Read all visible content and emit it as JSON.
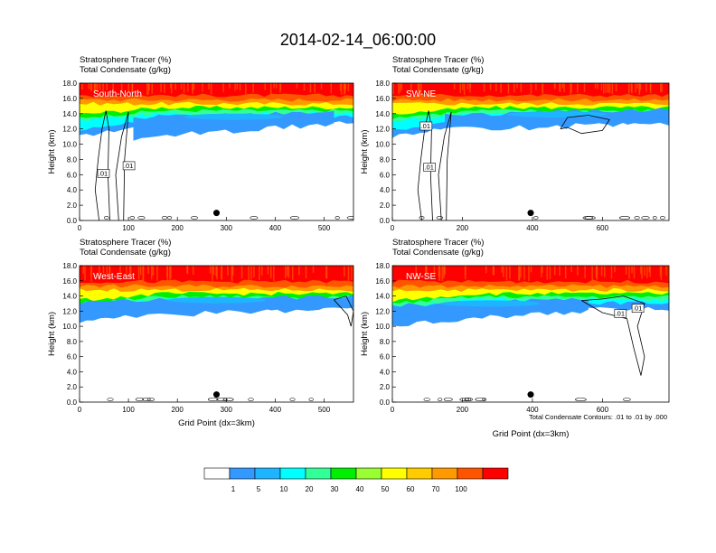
{
  "figure": {
    "title": "2014-02-14_06:00:00",
    "contour_note": "Total Condensate Contours: .01 to .01 by .000",
    "colors": {
      "background": "#ffffff",
      "axes": "#000000",
      "contour": "#000000",
      "marker": "#000000"
    }
  },
  "colorbar": {
    "labels": [
      "1",
      "5",
      "10",
      "20",
      "30",
      "40",
      "50",
      "60",
      "70",
      "100"
    ],
    "colors": [
      "#ffffff",
      "#3399ff",
      "#1fb4ff",
      "#00ffff",
      "#33ff99",
      "#00ee00",
      "#99ff33",
      "#ffff00",
      "#ffcc00",
      "#ff9900",
      "#ff5500",
      "#ff0000"
    ]
  },
  "chart_data": [
    {
      "type": "heatmap",
      "panel": "South-North",
      "label": "South-North",
      "subtitle1": "Stratosphere Tracer   (%)",
      "subtitle2": "Total Condensate   (g/kg)",
      "ylabel": "Height (km)",
      "xlabel": "",
      "xlim": [
        0,
        560
      ],
      "ylim": [
        0,
        18
      ],
      "xticks": [
        "0",
        "100",
        "200",
        "300",
        "400",
        "500"
      ],
      "yticks": [
        "0.0",
        "2.0",
        "4.0",
        "6.0",
        "8.0",
        "10.0",
        "12.0",
        "14.0",
        "16.0",
        "18.0"
      ],
      "marker": {
        "x": 280,
        "y": 1.0
      },
      "contour_labels": [
        ".01",
        ".01"
      ],
      "tracer_base_km": 15.0,
      "cloud_layer": {
        "x": [
          110,
          520
        ],
        "top_km": [
          13.5,
          14.2
        ],
        "bottom_km": [
          10.8,
          12.6
        ]
      }
    },
    {
      "type": "heatmap",
      "panel": "SW-NE",
      "label": "SW-NE",
      "subtitle1": "Stratosphere Tracer   (%)",
      "subtitle2": "Total Condensate   (g/kg)",
      "ylabel": "Height (km)",
      "xlabel": "",
      "xlim": [
        0,
        790
      ],
      "ylim": [
        0,
        18
      ],
      "xticks": [
        "0",
        "200",
        "400",
        "600"
      ],
      "yticks": [
        "0.0",
        "2.0",
        "4.0",
        "6.0",
        "8.0",
        "10.0",
        "12.0",
        "14.0",
        "16.0",
        "18.0"
      ],
      "marker": {
        "x": 395,
        "y": 1.0
      },
      "contour_labels": [
        ".01",
        ".01"
      ],
      "tracer_base_km": 15.0,
      "cloud_layer": {
        "x": [
          150,
          790
        ],
        "top_km": [
          13.8,
          14.6
        ],
        "bottom_km": [
          11.8,
          12.8
        ]
      }
    },
    {
      "type": "heatmap",
      "panel": "West-East",
      "label": "West-East",
      "subtitle1": "Stratosphere Tracer   (%)",
      "subtitle2": "Total Condensate   (g/kg)",
      "ylabel": "Height (km)",
      "xlabel": "Grid Point (dx=3km)",
      "xlim": [
        0,
        560
      ],
      "ylim": [
        0,
        18
      ],
      "xticks": [
        "0",
        "100",
        "200",
        "300",
        "400",
        "500"
      ],
      "yticks": [
        "0.0",
        "2.0",
        "4.0",
        "6.0",
        "8.0",
        "10.0",
        "12.0",
        "14.0",
        "16.0",
        "18.0"
      ],
      "marker": {
        "x": 280,
        "y": 1.0
      },
      "contour_labels": [],
      "tracer_base_km": 14.5,
      "cloud_layer": {
        "x": [
          0,
          560
        ],
        "top_km": [
          13.2,
          14.0
        ],
        "bottom_km": [
          11.0,
          12.5
        ]
      }
    },
    {
      "type": "heatmap",
      "panel": "NW-SE",
      "label": "NW-SE",
      "subtitle1": "Stratosphere Tracer   (%)",
      "subtitle2": "Total Condensate   (g/kg)",
      "ylabel": "Height (km)",
      "xlabel": "Grid Point (dx=3km)",
      "xlim": [
        0,
        790
      ],
      "ylim": [
        0,
        18
      ],
      "xticks": [
        "0",
        "200",
        "400",
        "600"
      ],
      "yticks": [
        "0.0",
        "2.0",
        "4.0",
        "6.0",
        "8.0",
        "10.0",
        "12.0",
        "14.0",
        "16.0",
        "18.0"
      ],
      "marker": {
        "x": 395,
        "y": 1.0
      },
      "contour_labels": [
        ".01",
        ".01"
      ],
      "tracer_base_km": 14.5,
      "cloud_layer": {
        "x": [
          0,
          560
        ],
        "top_km": [
          12.8,
          13.6
        ],
        "bottom_km": [
          10.2,
          12.0
        ]
      }
    }
  ]
}
